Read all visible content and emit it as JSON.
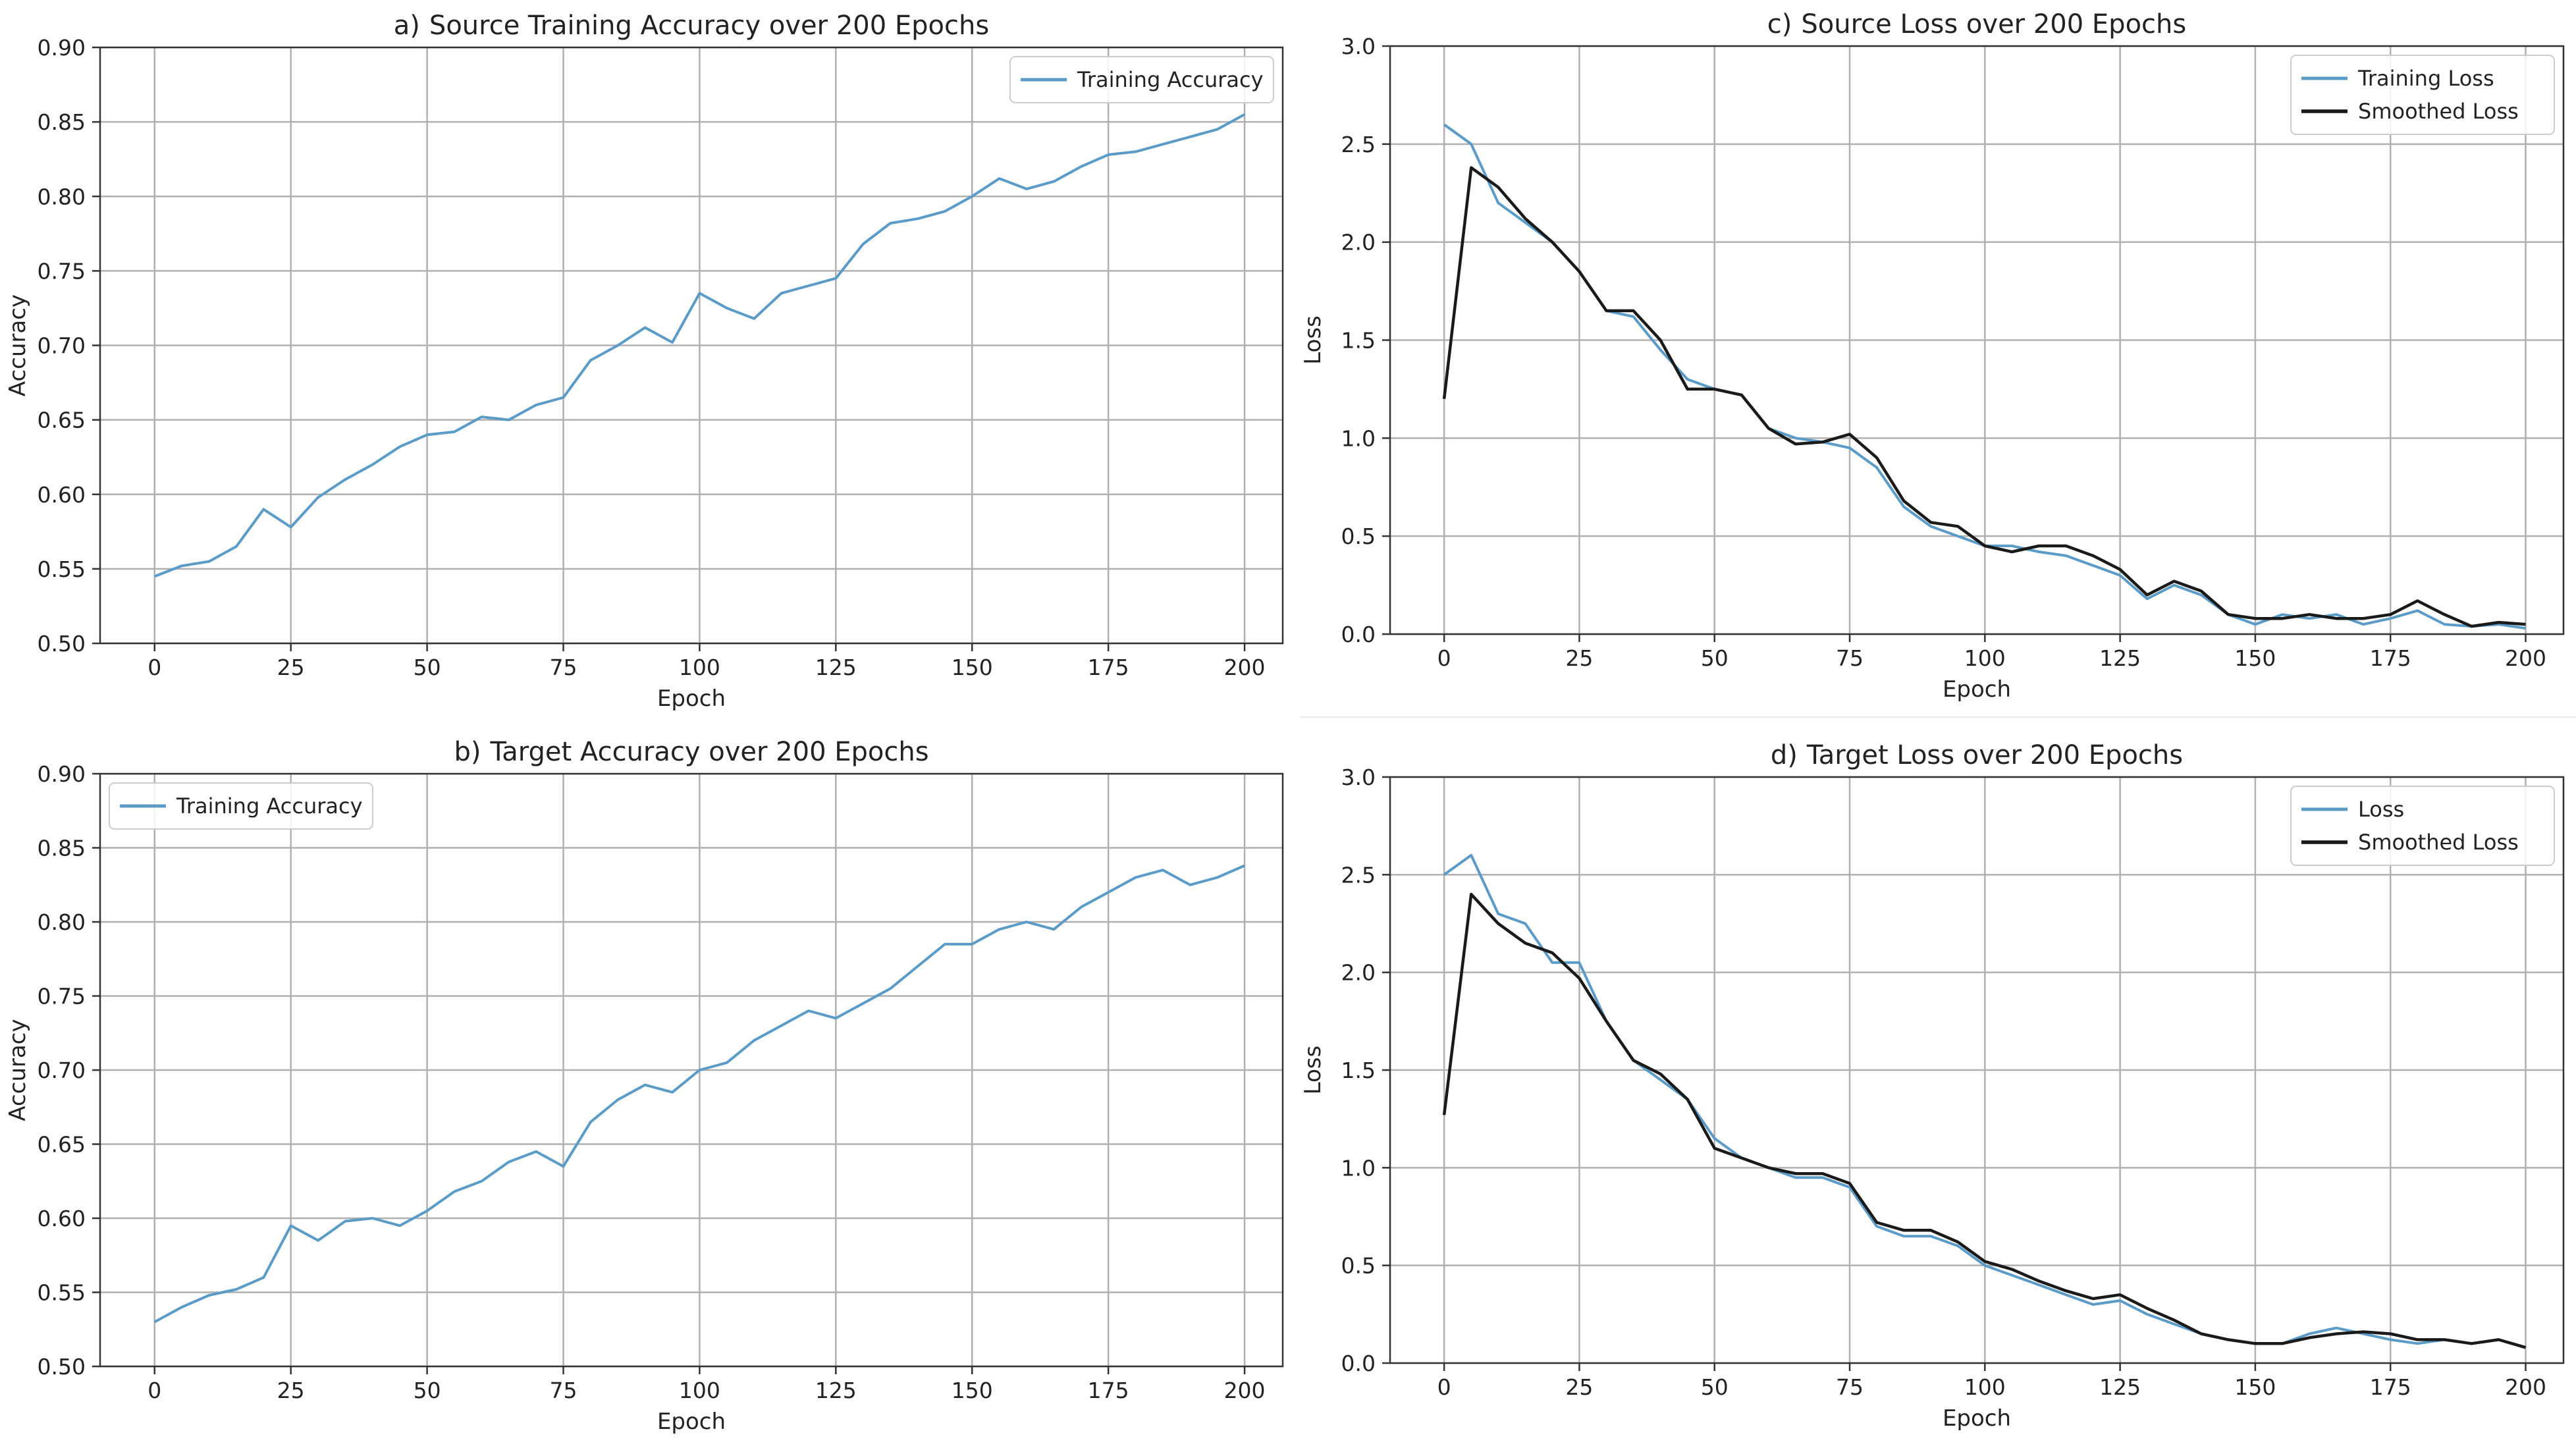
{
  "colors": {
    "raw": "#5b9bc8",
    "smooth": "#1a1a1a",
    "grid": "#b0b0b0",
    "axis": "#333333",
    "text": "#222222"
  },
  "chart_data": [
    {
      "id": "a",
      "type": "line",
      "letter": "a)",
      "title": "Source Training Accuracy over 200 Epochs",
      "xlabel": "Epoch",
      "ylabel": "Accuracy",
      "xlim": [
        -10,
        207
      ],
      "ylim": [
        0.5,
        0.9
      ],
      "xticks": [
        0,
        25,
        50,
        75,
        100,
        125,
        150,
        175,
        200
      ],
      "yticks": [
        0.5,
        0.55,
        0.6,
        0.65,
        0.7,
        0.75,
        0.8,
        0.85,
        0.9
      ],
      "ytick_labels": [
        "0.50",
        "0.55",
        "0.60",
        "0.65",
        "0.70",
        "0.75",
        "0.80",
        "0.85",
        "0.90"
      ],
      "grid": true,
      "legend_position": "top-right",
      "series": [
        {
          "name": "Training Accuracy",
          "style": "raw",
          "x": [
            0,
            5,
            10,
            15,
            20,
            25,
            30,
            35,
            40,
            45,
            50,
            55,
            60,
            65,
            70,
            75,
            80,
            85,
            90,
            95,
            100,
            105,
            110,
            115,
            120,
            125,
            130,
            135,
            140,
            145,
            150,
            155,
            160,
            165,
            170,
            175,
            180,
            185,
            190,
            195,
            200
          ],
          "values": [
            0.545,
            0.552,
            0.555,
            0.565,
            0.59,
            0.578,
            0.598,
            0.61,
            0.62,
            0.632,
            0.64,
            0.642,
            0.652,
            0.65,
            0.66,
            0.665,
            0.69,
            0.7,
            0.712,
            0.702,
            0.735,
            0.725,
            0.718,
            0.735,
            0.74,
            0.745,
            0.768,
            0.782,
            0.785,
            0.79,
            0.8,
            0.812,
            0.805,
            0.81,
            0.82,
            0.828,
            0.83,
            0.835,
            0.84,
            0.845,
            0.855
          ]
        }
      ]
    },
    {
      "id": "b",
      "type": "line",
      "letter": "b)",
      "title": "Target Accuracy over 200 Epochs",
      "xlabel": "Epoch",
      "ylabel": "Accuracy",
      "xlim": [
        -10,
        207
      ],
      "ylim": [
        0.5,
        0.9
      ],
      "xticks": [
        0,
        25,
        50,
        75,
        100,
        125,
        150,
        175,
        200
      ],
      "yticks": [
        0.5,
        0.55,
        0.6,
        0.65,
        0.7,
        0.75,
        0.8,
        0.85,
        0.9
      ],
      "ytick_labels": [
        "0.50",
        "0.55",
        "0.60",
        "0.65",
        "0.70",
        "0.75",
        "0.80",
        "0.85",
        "0.90"
      ],
      "grid": true,
      "legend_position": "top-left",
      "series": [
        {
          "name": "Training Accuracy",
          "style": "raw",
          "x": [
            0,
            5,
            10,
            15,
            20,
            25,
            30,
            35,
            40,
            45,
            50,
            55,
            60,
            65,
            70,
            75,
            80,
            85,
            90,
            95,
            100,
            105,
            110,
            115,
            120,
            125,
            130,
            135,
            140,
            145,
            150,
            155,
            160,
            165,
            170,
            175,
            180,
            185,
            190,
            195,
            200
          ],
          "values": [
            0.53,
            0.54,
            0.548,
            0.552,
            0.56,
            0.595,
            0.585,
            0.598,
            0.6,
            0.595,
            0.605,
            0.618,
            0.625,
            0.638,
            0.645,
            0.635,
            0.665,
            0.68,
            0.69,
            0.685,
            0.7,
            0.705,
            0.72,
            0.73,
            0.74,
            0.735,
            0.745,
            0.755,
            0.77,
            0.785,
            0.785,
            0.795,
            0.8,
            0.795,
            0.81,
            0.82,
            0.83,
            0.835,
            0.825,
            0.83,
            0.838
          ]
        }
      ]
    },
    {
      "id": "c",
      "type": "line",
      "letter": "c)",
      "title": "Source Loss over 200 Epochs",
      "xlabel": "Epoch",
      "ylabel": "Loss",
      "xlim": [
        -10,
        207
      ],
      "ylim": [
        0.0,
        3.0
      ],
      "xticks": [
        0,
        25,
        50,
        75,
        100,
        125,
        150,
        175,
        200
      ],
      "yticks": [
        0.0,
        0.5,
        1.0,
        1.5,
        2.0,
        2.5,
        3.0
      ],
      "ytick_labels": [
        "0.0",
        "0.5",
        "1.0",
        "1.5",
        "2.0",
        "2.5",
        "3.0"
      ],
      "grid": true,
      "legend_position": "top-right",
      "series": [
        {
          "name": "Training Loss",
          "style": "raw",
          "x": [
            0,
            5,
            10,
            15,
            20,
            25,
            30,
            35,
            40,
            45,
            50,
            55,
            60,
            65,
            70,
            75,
            80,
            85,
            90,
            95,
            100,
            105,
            110,
            115,
            120,
            125,
            130,
            135,
            140,
            145,
            150,
            155,
            160,
            165,
            170,
            175,
            180,
            185,
            190,
            195,
            200
          ],
          "values": [
            2.6,
            2.5,
            2.2,
            2.1,
            2.0,
            1.85,
            1.65,
            1.62,
            1.45,
            1.3,
            1.25,
            1.22,
            1.05,
            1.0,
            0.98,
            0.95,
            0.85,
            0.65,
            0.55,
            0.5,
            0.45,
            0.45,
            0.42,
            0.4,
            0.35,
            0.3,
            0.18,
            0.25,
            0.2,
            0.1,
            0.05,
            0.1,
            0.08,
            0.1,
            0.05,
            0.08,
            0.12,
            0.05,
            0.04,
            0.05,
            0.03
          ]
        },
        {
          "name": "Smoothed Loss",
          "style": "smooth",
          "x": [
            0,
            5,
            10,
            15,
            20,
            25,
            30,
            35,
            40,
            45,
            50,
            55,
            60,
            65,
            70,
            75,
            80,
            85,
            90,
            95,
            100,
            105,
            110,
            115,
            120,
            125,
            130,
            135,
            140,
            145,
            150,
            155,
            160,
            165,
            170,
            175,
            180,
            185,
            190,
            195,
            200
          ],
          "values": [
            1.2,
            2.38,
            2.28,
            2.12,
            2.0,
            1.85,
            1.65,
            1.65,
            1.5,
            1.25,
            1.25,
            1.22,
            1.05,
            0.97,
            0.98,
            1.02,
            0.9,
            0.68,
            0.57,
            0.55,
            0.45,
            0.42,
            0.45,
            0.45,
            0.4,
            0.33,
            0.2,
            0.27,
            0.22,
            0.1,
            0.08,
            0.08,
            0.1,
            0.08,
            0.08,
            0.1,
            0.17,
            0.1,
            0.04,
            0.06,
            0.05
          ]
        }
      ]
    },
    {
      "id": "d",
      "type": "line",
      "letter": "d)",
      "title": "Target Loss over 200 Epochs",
      "xlabel": "Epoch",
      "ylabel": "Loss",
      "xlim": [
        -10,
        207
      ],
      "ylim": [
        0.0,
        3.0
      ],
      "xticks": [
        0,
        25,
        50,
        75,
        100,
        125,
        150,
        175,
        200
      ],
      "yticks": [
        0.0,
        0.5,
        1.0,
        1.5,
        2.0,
        2.5,
        3.0
      ],
      "ytick_labels": [
        "0.0",
        "0.5",
        "1.0",
        "1.5",
        "2.0",
        "2.5",
        "3.0"
      ],
      "grid": true,
      "legend_position": "top-right",
      "series": [
        {
          "name": "Loss",
          "style": "raw",
          "x": [
            0,
            5,
            10,
            15,
            20,
            25,
            30,
            35,
            40,
            45,
            50,
            55,
            60,
            65,
            70,
            75,
            80,
            85,
            90,
            95,
            100,
            105,
            110,
            115,
            120,
            125,
            130,
            135,
            140,
            145,
            150,
            155,
            160,
            165,
            170,
            175,
            180,
            185,
            190,
            195,
            200
          ],
          "values": [
            2.5,
            2.6,
            2.3,
            2.25,
            2.05,
            2.05,
            1.75,
            1.55,
            1.45,
            1.35,
            1.15,
            1.05,
            1.0,
            0.95,
            0.95,
            0.9,
            0.7,
            0.65,
            0.65,
            0.6,
            0.5,
            0.45,
            0.4,
            0.35,
            0.3,
            0.32,
            0.25,
            0.2,
            0.15,
            0.12,
            0.1,
            0.1,
            0.15,
            0.18,
            0.15,
            0.12,
            0.1,
            0.12,
            0.1,
            0.12,
            0.08
          ]
        },
        {
          "name": "Smoothed Loss",
          "style": "smooth",
          "x": [
            0,
            5,
            10,
            15,
            20,
            25,
            30,
            35,
            40,
            45,
            50,
            55,
            60,
            65,
            70,
            75,
            80,
            85,
            90,
            95,
            100,
            105,
            110,
            115,
            120,
            125,
            130,
            135,
            140,
            145,
            150,
            155,
            160,
            165,
            170,
            175,
            180,
            185,
            190,
            195,
            200
          ],
          "values": [
            1.27,
            2.4,
            2.25,
            2.15,
            2.1,
            1.97,
            1.75,
            1.55,
            1.48,
            1.35,
            1.1,
            1.05,
            1.0,
            0.97,
            0.97,
            0.92,
            0.72,
            0.68,
            0.68,
            0.62,
            0.52,
            0.48,
            0.42,
            0.37,
            0.33,
            0.35,
            0.28,
            0.22,
            0.15,
            0.12,
            0.1,
            0.1,
            0.13,
            0.15,
            0.16,
            0.15,
            0.12,
            0.12,
            0.1,
            0.12,
            0.08
          ]
        }
      ]
    }
  ]
}
